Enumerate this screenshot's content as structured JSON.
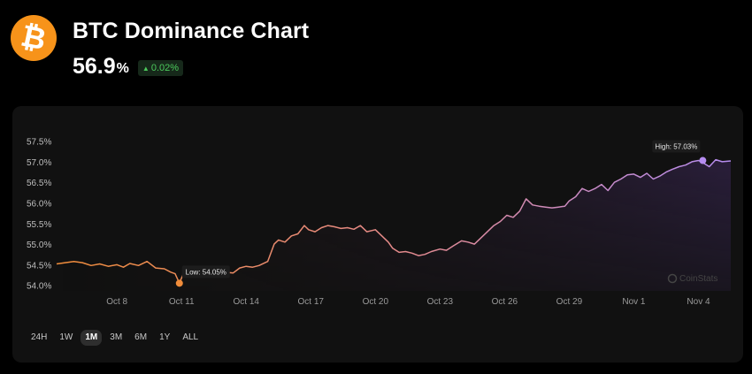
{
  "header": {
    "logo_icon": "bitcoin-icon",
    "logo_glyph": "₿",
    "title": "BTC Dominance Chart",
    "value": "56.9",
    "value_unit": "%",
    "change_arrow": "▲",
    "change": "0.02%"
  },
  "colors": {
    "brand": "#f7931a",
    "positive": "#4cc95c",
    "line_start": "#f08c3a",
    "line_end": "#b58cf0"
  },
  "ranges": [
    "24H",
    "1W",
    "1M",
    "3M",
    "6M",
    "1Y",
    "ALL"
  ],
  "active_range": "1M",
  "watermark": "CoinStats",
  "chart_data": {
    "type": "area",
    "y_unit": "%",
    "ylim": [
      53.95,
      57.6
    ],
    "yticks": [
      "57.5%",
      "57.0%",
      "56.5%",
      "56.0%",
      "55.5%",
      "55.0%",
      "54.5%",
      "54.0%"
    ],
    "ytick_values": [
      57.5,
      57.0,
      56.5,
      56.0,
      55.5,
      55.0,
      54.5,
      54.0
    ],
    "xticks": [
      "Oct 8",
      "Oct 11",
      "Oct 14",
      "Oct 17",
      "Oct 20",
      "Oct 23",
      "Oct 26",
      "Oct 29",
      "Nov 1",
      "Nov 4"
    ],
    "xtick_days": [
      8,
      11,
      14,
      17,
      20,
      23,
      26,
      29,
      32,
      35
    ],
    "xlim": [
      5.2,
      36.5
    ],
    "annotations": {
      "low": {
        "label": "Low: 54.05%",
        "day": 10.9,
        "value": 54.05
      },
      "high": {
        "label": "High: 57.03%",
        "day": 35.2,
        "value": 57.03
      }
    },
    "series": [
      {
        "x": [
          5.2,
          5.6,
          6.0,
          6.4,
          6.8,
          7.2,
          7.6,
          8.0,
          8.3,
          8.6,
          9.0,
          9.4,
          9.8,
          10.2,
          10.5,
          10.7,
          10.9,
          11.1,
          11.4,
          11.7,
          12.0,
          12.3,
          12.7,
          13.0,
          13.4,
          13.7,
          14.0,
          14.3,
          14.6,
          15.0,
          15.3,
          15.5,
          15.8,
          16.1,
          16.4,
          16.7,
          16.9,
          17.2,
          17.5,
          17.8,
          18.1,
          18.4,
          18.7,
          19.0,
          19.3,
          19.6,
          20.0,
          20.3,
          20.6,
          20.8,
          21.1,
          21.4,
          21.7,
          22.0,
          22.3,
          22.6,
          23.0,
          23.3,
          23.6,
          24.0,
          24.3,
          24.6,
          24.9,
          25.2,
          25.5,
          25.8,
          26.1,
          26.4,
          26.7,
          27.0,
          27.3,
          27.6,
          27.9,
          28.2,
          28.5,
          28.8,
          29.0,
          29.3,
          29.6,
          29.9,
          30.2,
          30.5,
          30.8,
          31.1,
          31.4,
          31.7,
          32.0,
          32.3,
          32.6,
          32.9,
          33.2,
          33.5,
          33.8,
          34.1,
          34.4,
          34.7,
          35.0,
          35.2,
          35.5,
          35.8,
          36.1,
          36.5
        ],
        "y": [
          54.52,
          54.55,
          54.58,
          54.55,
          54.48,
          54.52,
          54.46,
          54.5,
          54.44,
          54.53,
          54.48,
          54.58,
          54.42,
          54.4,
          54.32,
          54.28,
          54.05,
          54.3,
          54.26,
          54.32,
          54.3,
          54.38,
          54.26,
          54.32,
          54.3,
          54.42,
          54.46,
          54.44,
          54.48,
          54.58,
          55.0,
          55.1,
          55.05,
          55.2,
          55.25,
          55.45,
          55.35,
          55.3,
          55.4,
          55.45,
          55.42,
          55.38,
          55.4,
          55.36,
          55.45,
          55.3,
          55.35,
          55.2,
          55.05,
          54.9,
          54.8,
          54.82,
          54.78,
          54.72,
          54.75,
          54.82,
          54.88,
          54.85,
          54.95,
          55.08,
          55.05,
          55.0,
          55.15,
          55.3,
          55.45,
          55.55,
          55.7,
          55.65,
          55.8,
          56.1,
          55.95,
          55.92,
          55.9,
          55.88,
          55.9,
          55.92,
          56.05,
          56.15,
          56.35,
          56.28,
          56.35,
          56.45,
          56.3,
          56.5,
          56.58,
          56.68,
          56.7,
          56.62,
          56.72,
          56.58,
          56.65,
          56.75,
          56.82,
          56.88,
          56.92,
          57.0,
          57.03,
          56.98,
          56.88,
          57.05,
          57.0,
          57.02
        ]
      }
    ]
  }
}
